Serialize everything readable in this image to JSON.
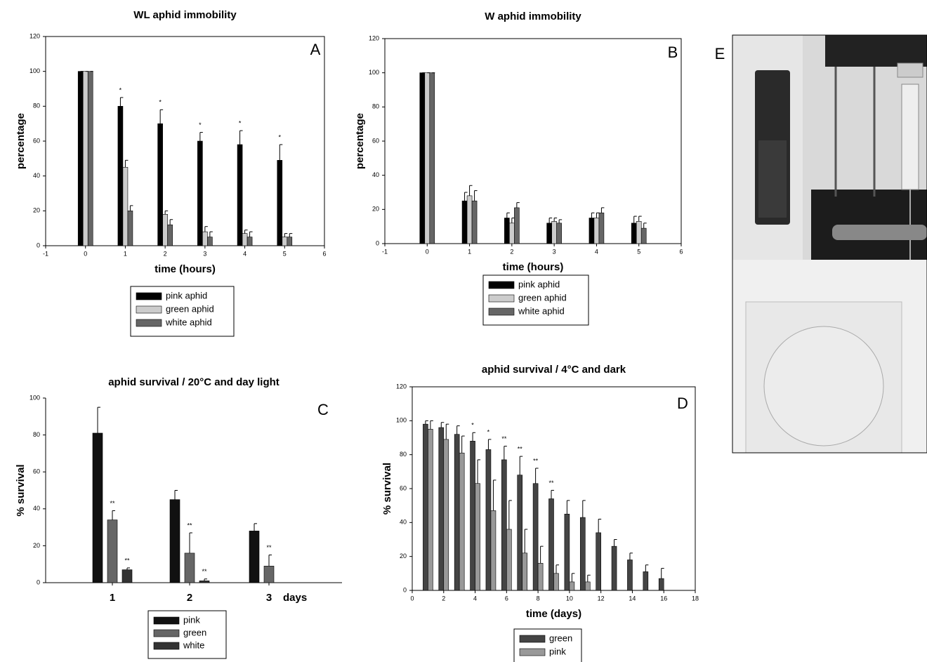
{
  "chart_data": [
    {
      "type": "bar",
      "title": "WL aphid immobility",
      "panel_label": "A",
      "x_label": "time (hours)",
      "y_label": "percentage",
      "x": [
        0,
        1,
        2,
        3,
        4,
        5
      ],
      "xlim": [
        -1,
        6
      ],
      "xticks": [
        -1,
        0,
        1,
        2,
        3,
        4,
        5,
        6
      ],
      "ylim": [
        0,
        120
      ],
      "yticks": [
        0,
        20,
        40,
        60,
        80,
        100,
        120
      ],
      "series": [
        {
          "name": "pink aphid",
          "color": "#000000",
          "values": [
            100,
            80,
            70,
            60,
            58,
            49
          ],
          "errors": [
            0,
            5,
            8,
            5,
            8,
            9
          ],
          "annotations": [
            null,
            "*",
            "*",
            "*",
            "*",
            "*"
          ]
        },
        {
          "name": "green aphid",
          "color": "#cccccc",
          "values": [
            100,
            45,
            18,
            8,
            7,
            5
          ],
          "errors": [
            0,
            4,
            2,
            3,
            2,
            2
          ]
        },
        {
          "name": "white aphid",
          "color": "#666666",
          "values": [
            100,
            20,
            12,
            5,
            5,
            5
          ],
          "errors": [
            0,
            3,
            3,
            3,
            3,
            2
          ]
        }
      ]
    },
    {
      "type": "bar",
      "title": "W aphid immobility",
      "panel_label": "B",
      "x_label": "time (hours)",
      "y_label": "percentage",
      "x": [
        0,
        1,
        2,
        3,
        4,
        5
      ],
      "xlim": [
        -1,
        6
      ],
      "xticks": [
        -1,
        0,
        1,
        2,
        3,
        4,
        5,
        6
      ],
      "ylim": [
        0,
        120
      ],
      "yticks": [
        0,
        20,
        40,
        60,
        80,
        100,
        120
      ],
      "series": [
        {
          "name": "pink aphid",
          "color": "#000000",
          "values": [
            100,
            25,
            15,
            12,
            15,
            12
          ],
          "errors": [
            0,
            5,
            3,
            3,
            3,
            4
          ]
        },
        {
          "name": "green aphid",
          "color": "#cccccc",
          "values": [
            100,
            28,
            12,
            13,
            15,
            13
          ],
          "errors": [
            0,
            6,
            3,
            2,
            3,
            3
          ]
        },
        {
          "name": "white aphid",
          "color": "#666666",
          "values": [
            100,
            25,
            21,
            12,
            18,
            9
          ],
          "errors": [
            0,
            6,
            3,
            2,
            3,
            3
          ]
        }
      ]
    },
    {
      "type": "bar",
      "title": "aphid survival / 20°C and day light",
      "panel_label": "C",
      "x_label": "days",
      "y_label": "% survival",
      "categories": [
        "1",
        "2",
        "3"
      ],
      "ylim": [
        0,
        100
      ],
      "yticks": [
        0,
        20,
        40,
        60,
        80,
        100
      ],
      "series": [
        {
          "name": "pink",
          "color": "#111111",
          "values": [
            81,
            45,
            28
          ],
          "errors": [
            14,
            5,
            4
          ]
        },
        {
          "name": "green",
          "color": "#666666",
          "values": [
            34,
            16,
            9
          ],
          "errors": [
            5,
            11,
            6
          ],
          "annotations": [
            "**",
            "**",
            "**"
          ]
        },
        {
          "name": "white",
          "color": "#333333",
          "values": [
            7,
            1,
            0
          ],
          "errors": [
            1,
            1,
            0
          ],
          "annotations": [
            "**",
            "**",
            null
          ]
        }
      ]
    },
    {
      "type": "bar",
      "title": "aphid survival / 4°C and dark",
      "panel_label": "D",
      "x_label": "time (days)",
      "y_label": "% survival",
      "x": [
        1,
        2,
        3,
        4,
        5,
        6,
        7,
        8,
        9,
        10,
        11,
        12,
        13,
        14,
        15,
        16
      ],
      "xlim": [
        0,
        18
      ],
      "xticks": [
        0,
        2,
        4,
        6,
        8,
        10,
        12,
        14,
        16,
        18
      ],
      "ylim": [
        0,
        120
      ],
      "yticks": [
        0,
        20,
        40,
        60,
        80,
        100,
        120
      ],
      "series": [
        {
          "name": "green",
          "color": "#444444",
          "values": [
            98,
            96,
            92,
            88,
            83,
            77,
            68,
            63,
            54,
            45,
            43,
            34,
            26,
            18,
            11,
            7
          ],
          "errors": [
            2,
            3,
            5,
            5,
            6,
            8,
            11,
            9,
            5,
            8,
            10,
            8,
            4,
            4,
            4,
            6
          ],
          "annotations": [
            null,
            null,
            null,
            "*",
            "*",
            "**",
            "**",
            "**",
            "**",
            null,
            null,
            null,
            null,
            null,
            null,
            null
          ]
        },
        {
          "name": "pink",
          "color": "#999999",
          "values": [
            95,
            89,
            81,
            63,
            47,
            36,
            22,
            16,
            10,
            5,
            5,
            null,
            null,
            null,
            null,
            null
          ],
          "errors": [
            5,
            9,
            10,
            14,
            18,
            17,
            14,
            10,
            5,
            5,
            4,
            null,
            null,
            null,
            null,
            null
          ]
        }
      ]
    }
  ],
  "photo": {
    "label": "E"
  }
}
